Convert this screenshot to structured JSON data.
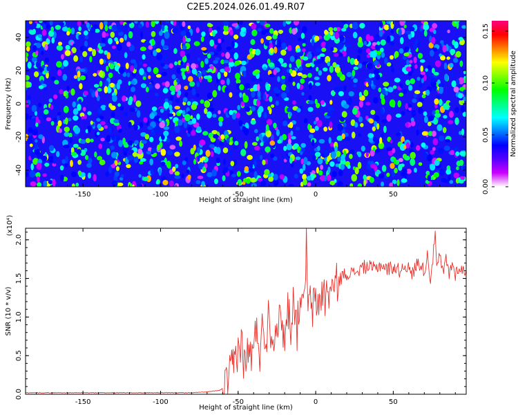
{
  "title": "C2E5.2024.026.01.49.R07",
  "chart_data": [
    {
      "type": "heatmap",
      "xlabel": "Height of straight line (km)",
      "ylabel": "Frequency (Hz)",
      "xlim": [
        -187,
        97
      ],
      "ylim": [
        -50,
        50
      ],
      "xticks": [
        -150,
        -100,
        -50,
        0,
        50
      ],
      "yticks": [
        -40,
        -20,
        0,
        20,
        40
      ],
      "colorbar": {
        "label": "Normalized spectral amplitude",
        "range": [
          0,
          0.16
        ],
        "ticks": [
          "0.00",
          "0.05",
          "0.10",
          "0.15"
        ],
        "colormap": [
          "#ffffff",
          "#cc00ff",
          "#5500ff",
          "#0000ff",
          "#0080ff",
          "#00ffff",
          "#00ff80",
          "#00ff00",
          "#80ff00",
          "#ffff00",
          "#ff8000",
          "#ff0000",
          "#ff0080"
        ]
      },
      "background_level": 0.02,
      "spot_level_range": [
        0.04,
        0.13
      ]
    },
    {
      "type": "line",
      "xlabel": "Height of straight line (km)",
      "ylabel": "SNR (10 * v/v)",
      "y_scale_label": "(x10⁴)",
      "xlim": [
        -187,
        97
      ],
      "ylim": [
        0,
        2.15
      ],
      "xticks": [
        -150,
        -100,
        -50,
        0,
        50
      ],
      "yticks": [
        "0.0",
        "0.5",
        "1.0",
        "1.5",
        "2.0"
      ],
      "line_color": "#e8302a",
      "series": [
        {
          "x": [
            -187,
            -160,
            -130,
            -100,
            -80,
            -70,
            -62,
            -58,
            -55,
            -52,
            -50,
            -48,
            -46,
            -44,
            -42,
            -40,
            -38,
            -36,
            -34,
            -32,
            -30,
            -28,
            -26,
            -24,
            -22,
            -20,
            -18,
            -16,
            -14,
            -12,
            -10,
            -8,
            -6,
            -5,
            -4,
            -2,
            0,
            2,
            4,
            6,
            8,
            10,
            12,
            14,
            16,
            18,
            20,
            22,
            24,
            26,
            28,
            30,
            34,
            38,
            42,
            46,
            50,
            54,
            58,
            62,
            66,
            70,
            72,
            74,
            76,
            77,
            78,
            80,
            82,
            84,
            86,
            88,
            90,
            92,
            94,
            97
          ],
          "y": [
            0.02,
            0.02,
            0.02,
            0.02,
            0.02,
            0.03,
            0.05,
            0.1,
            0.25,
            0.45,
            0.6,
            0.65,
            0.4,
            0.5,
            0.55,
            0.5,
            0.95,
            0.55,
            0.9,
            0.7,
            1.15,
            0.6,
            1.0,
            0.85,
            1.05,
            0.65,
            1.15,
            0.9,
            1.3,
            0.8,
            1.35,
            1.0,
            1.95,
            1.05,
            1.2,
            1.1,
            1.2,
            1.15,
            1.35,
            1.25,
            1.3,
            1.4,
            1.35,
            1.45,
            1.5,
            1.55,
            1.55,
            1.6,
            1.55,
            1.6,
            1.6,
            1.65,
            1.65,
            1.62,
            1.68,
            1.62,
            1.65,
            1.6,
            1.68,
            1.55,
            1.72,
            1.6,
            1.8,
            1.5,
            1.85,
            2.12,
            1.6,
            1.8,
            1.55,
            1.75,
            1.55,
            1.7,
            1.55,
            1.65,
            1.6,
            1.6
          ]
        }
      ]
    }
  ]
}
